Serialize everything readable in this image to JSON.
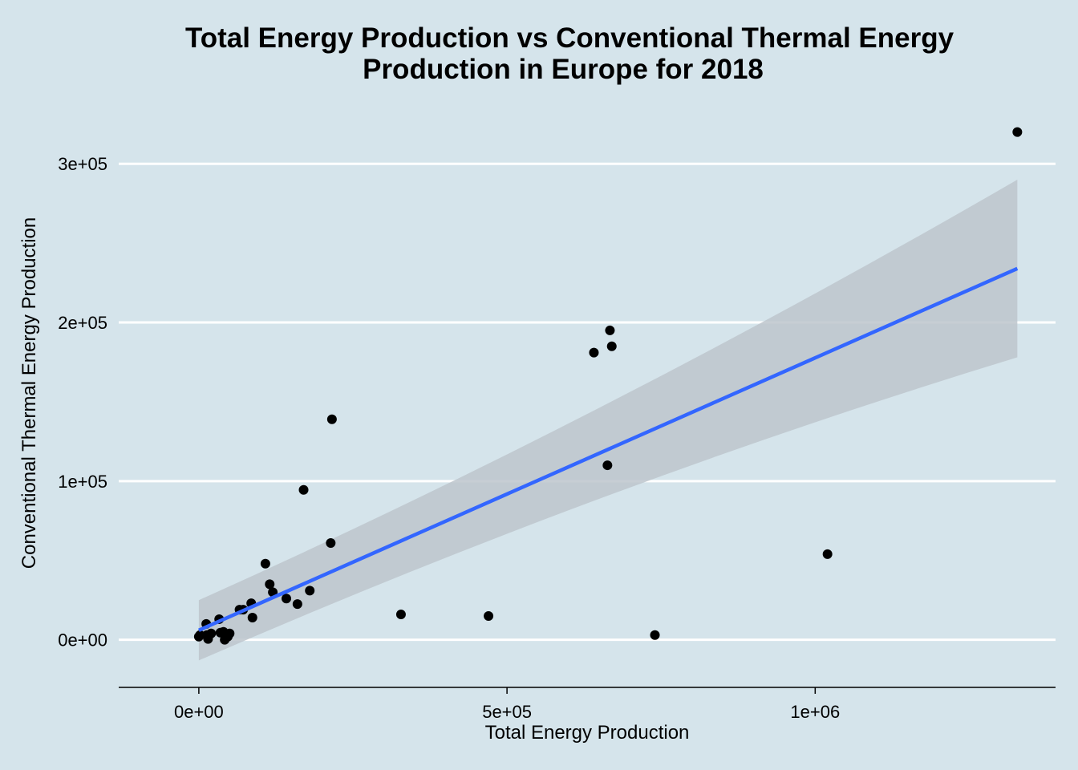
{
  "chart_data": {
    "type": "scatter",
    "title_lines": [
      "Total Energy Production vs Conventional Thermal Energy",
      "Production in Europe for 2018"
    ],
    "xlabel": "Total Energy Production",
    "ylabel": "Conventional Thermal Energy Production",
    "xlim": [
      -130000,
      1390000
    ],
    "ylim": [
      -30000,
      335000
    ],
    "x_ticks": [
      {
        "value": 0,
        "label": "0e+00"
      },
      {
        "value": 500000,
        "label": "5e+05"
      },
      {
        "value": 1000000,
        "label": "1e+06"
      }
    ],
    "y_ticks": [
      {
        "value": 0,
        "label": "0e+00"
      },
      {
        "value": 100000,
        "label": "1e+05"
      },
      {
        "value": 200000,
        "label": "2e+05"
      },
      {
        "value": 300000,
        "label": "3e+05"
      }
    ],
    "grid": "horizontal major lines",
    "points": [
      {
        "x": 0,
        "y": 2000
      },
      {
        "x": 2000,
        "y": 3000
      },
      {
        "x": 12000,
        "y": 10000
      },
      {
        "x": 13000,
        "y": 3000
      },
      {
        "x": 15000,
        "y": 500
      },
      {
        "x": 20000,
        "y": 4000
      },
      {
        "x": 33000,
        "y": 13000
      },
      {
        "x": 35000,
        "y": 4500
      },
      {
        "x": 40000,
        "y": 5000
      },
      {
        "x": 42000,
        "y": 0
      },
      {
        "x": 47000,
        "y": 2000
      },
      {
        "x": 50000,
        "y": 4000
      },
      {
        "x": 66000,
        "y": 19000
      },
      {
        "x": 72000,
        "y": 19000
      },
      {
        "x": 85000,
        "y": 23000
      },
      {
        "x": 87000,
        "y": 14000
      },
      {
        "x": 108000,
        "y": 48000
      },
      {
        "x": 115000,
        "y": 35000
      },
      {
        "x": 120000,
        "y": 30000
      },
      {
        "x": 142000,
        "y": 26000
      },
      {
        "x": 160000,
        "y": 22500
      },
      {
        "x": 170000,
        "y": 94500
      },
      {
        "x": 180000,
        "y": 31000
      },
      {
        "x": 214000,
        "y": 61000
      },
      {
        "x": 216000,
        "y": 139000
      },
      {
        "x": 328000,
        "y": 16000
      },
      {
        "x": 470000,
        "y": 15000
      },
      {
        "x": 641000,
        "y": 181000
      },
      {
        "x": 663000,
        "y": 110000
      },
      {
        "x": 667000,
        "y": 195000
      },
      {
        "x": 670000,
        "y": 185000
      },
      {
        "x": 740000,
        "y": 3000
      },
      {
        "x": 1020000,
        "y": 54000
      },
      {
        "x": 1328000,
        "y": 320000
      }
    ],
    "trend_line": {
      "method": "linear fit",
      "color": "#3366ff",
      "x": [
        0,
        1328000
      ],
      "y": [
        6000,
        234000
      ],
      "ci_lower": [
        -13000,
        178000
      ],
      "ci_upper": [
        25000,
        290000
      ]
    },
    "colors": {
      "background": "#d5e4eb",
      "gridline": "#ffffff",
      "point": "#000000",
      "ribbon": "#bdc5cc"
    }
  }
}
